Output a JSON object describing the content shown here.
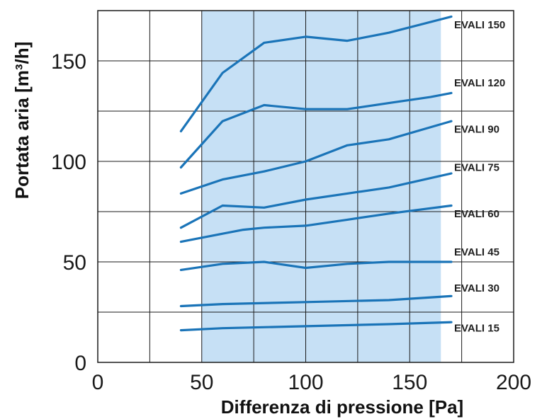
{
  "chart_data": {
    "type": "line",
    "xlabel": "Differenza di pressione [Pa]",
    "ylabel": "Portata aria [m³/h]",
    "xlim": [
      0,
      200
    ],
    "ylim": [
      0,
      175
    ],
    "x_ticks": [
      "0",
      "50",
      "100",
      "150",
      "200"
    ],
    "y_ticks": [
      "0",
      "50",
      "100",
      "150"
    ],
    "x_tick_values": [
      0,
      50,
      100,
      150,
      200
    ],
    "y_tick_values": [
      0,
      50,
      100,
      150
    ],
    "x_grid": [
      25,
      50,
      75,
      100,
      125,
      150,
      175
    ],
    "y_grid": [
      25,
      50,
      75,
      100,
      125,
      150
    ],
    "highlight_band": [
      50,
      165
    ],
    "grid": true,
    "colors": {
      "line": "#1a74b8",
      "band": "#c6e0f5",
      "grid": "#1a1a1a"
    },
    "series": [
      {
        "name": "EVALI 150",
        "x": [
          40,
          60,
          80,
          100,
          120,
          140,
          170
        ],
        "y": [
          115,
          144,
          159,
          162,
          160,
          164,
          172
        ]
      },
      {
        "name": "EVALI 120",
        "x": [
          40,
          60,
          80,
          100,
          120,
          140,
          160,
          170
        ],
        "y": [
          97,
          120,
          128,
          126,
          126,
          129,
          132,
          134
        ]
      },
      {
        "name": "EVALI 90",
        "x": [
          40,
          60,
          80,
          100,
          120,
          140,
          170
        ],
        "y": [
          84,
          91,
          95,
          100,
          108,
          111,
          120
        ]
      },
      {
        "name": "EVALI 75",
        "x": [
          40,
          60,
          80,
          100,
          120,
          140,
          170
        ],
        "y": [
          67,
          78,
          77,
          81,
          84,
          87,
          94
        ]
      },
      {
        "name": "EVALI 60",
        "x": [
          40,
          60,
          70,
          80,
          100,
          120,
          140,
          170
        ],
        "y": [
          60,
          64,
          66,
          67,
          68,
          71,
          74,
          78
        ]
      },
      {
        "name": "EVALI 45",
        "x": [
          40,
          60,
          80,
          100,
          120,
          140,
          170
        ],
        "y": [
          46,
          49,
          50,
          47,
          49,
          50,
          50
        ]
      },
      {
        "name": "EVALI 30",
        "x": [
          40,
          60,
          100,
          140,
          170
        ],
        "y": [
          28,
          29,
          30,
          31,
          33
        ]
      },
      {
        "name": "EVALI 15",
        "x": [
          40,
          60,
          100,
          140,
          170
        ],
        "y": [
          16,
          17,
          18,
          19,
          20
        ]
      }
    ],
    "series_label_y": [
      168,
      139,
      116,
      97,
      74,
      55,
      37,
      17
    ]
  }
}
